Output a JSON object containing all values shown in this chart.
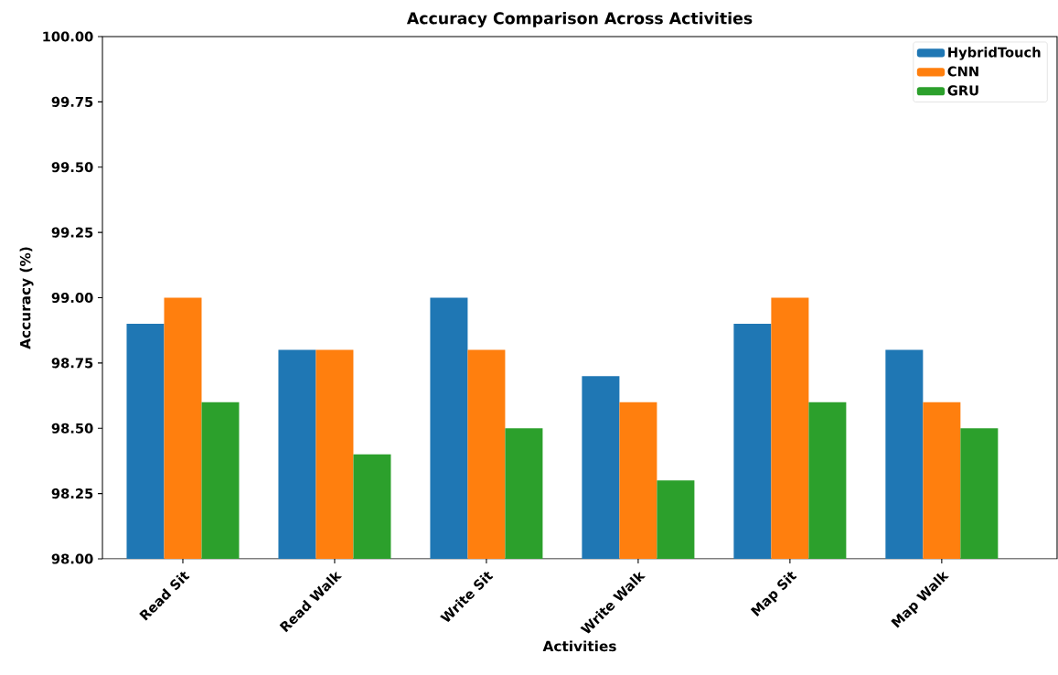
{
  "chart_data": {
    "type": "bar",
    "title": "Accuracy Comparison Across Activities",
    "xlabel": "Activities",
    "ylabel": "Accuracy (%)",
    "categories": [
      "Read Sit",
      "Read Walk",
      "Write Sit",
      "Write Walk",
      "Map Sit",
      "Map Walk"
    ],
    "series": [
      {
        "name": "HybridTouch",
        "color": "#1f77b4",
        "values": [
          98.9,
          98.8,
          99.0,
          98.7,
          98.9,
          98.8
        ]
      },
      {
        "name": "CNN",
        "color": "#ff7f0e",
        "values": [
          99.0,
          98.8,
          98.8,
          98.6,
          99.0,
          98.6
        ]
      },
      {
        "name": "GRU",
        "color": "#2ca02c",
        "values": [
          98.6,
          98.4,
          98.5,
          98.3,
          98.6,
          98.5
        ]
      }
    ],
    "ylim": [
      98.0,
      100.0
    ],
    "yticks": [
      {
        "value": 98.0,
        "label": "98.00"
      },
      {
        "value": 98.25,
        "label": "98.25"
      },
      {
        "value": 98.5,
        "label": "98.50"
      },
      {
        "value": 98.75,
        "label": "98.75"
      },
      {
        "value": 99.0,
        "label": "99.00"
      },
      {
        "value": 99.25,
        "label": "99.25"
      },
      {
        "value": 99.5,
        "label": "99.50"
      },
      {
        "value": 99.75,
        "label": "99.75"
      },
      {
        "value": 100.0,
        "label": "100.00"
      }
    ],
    "grid": false,
    "legend": "top right"
  }
}
